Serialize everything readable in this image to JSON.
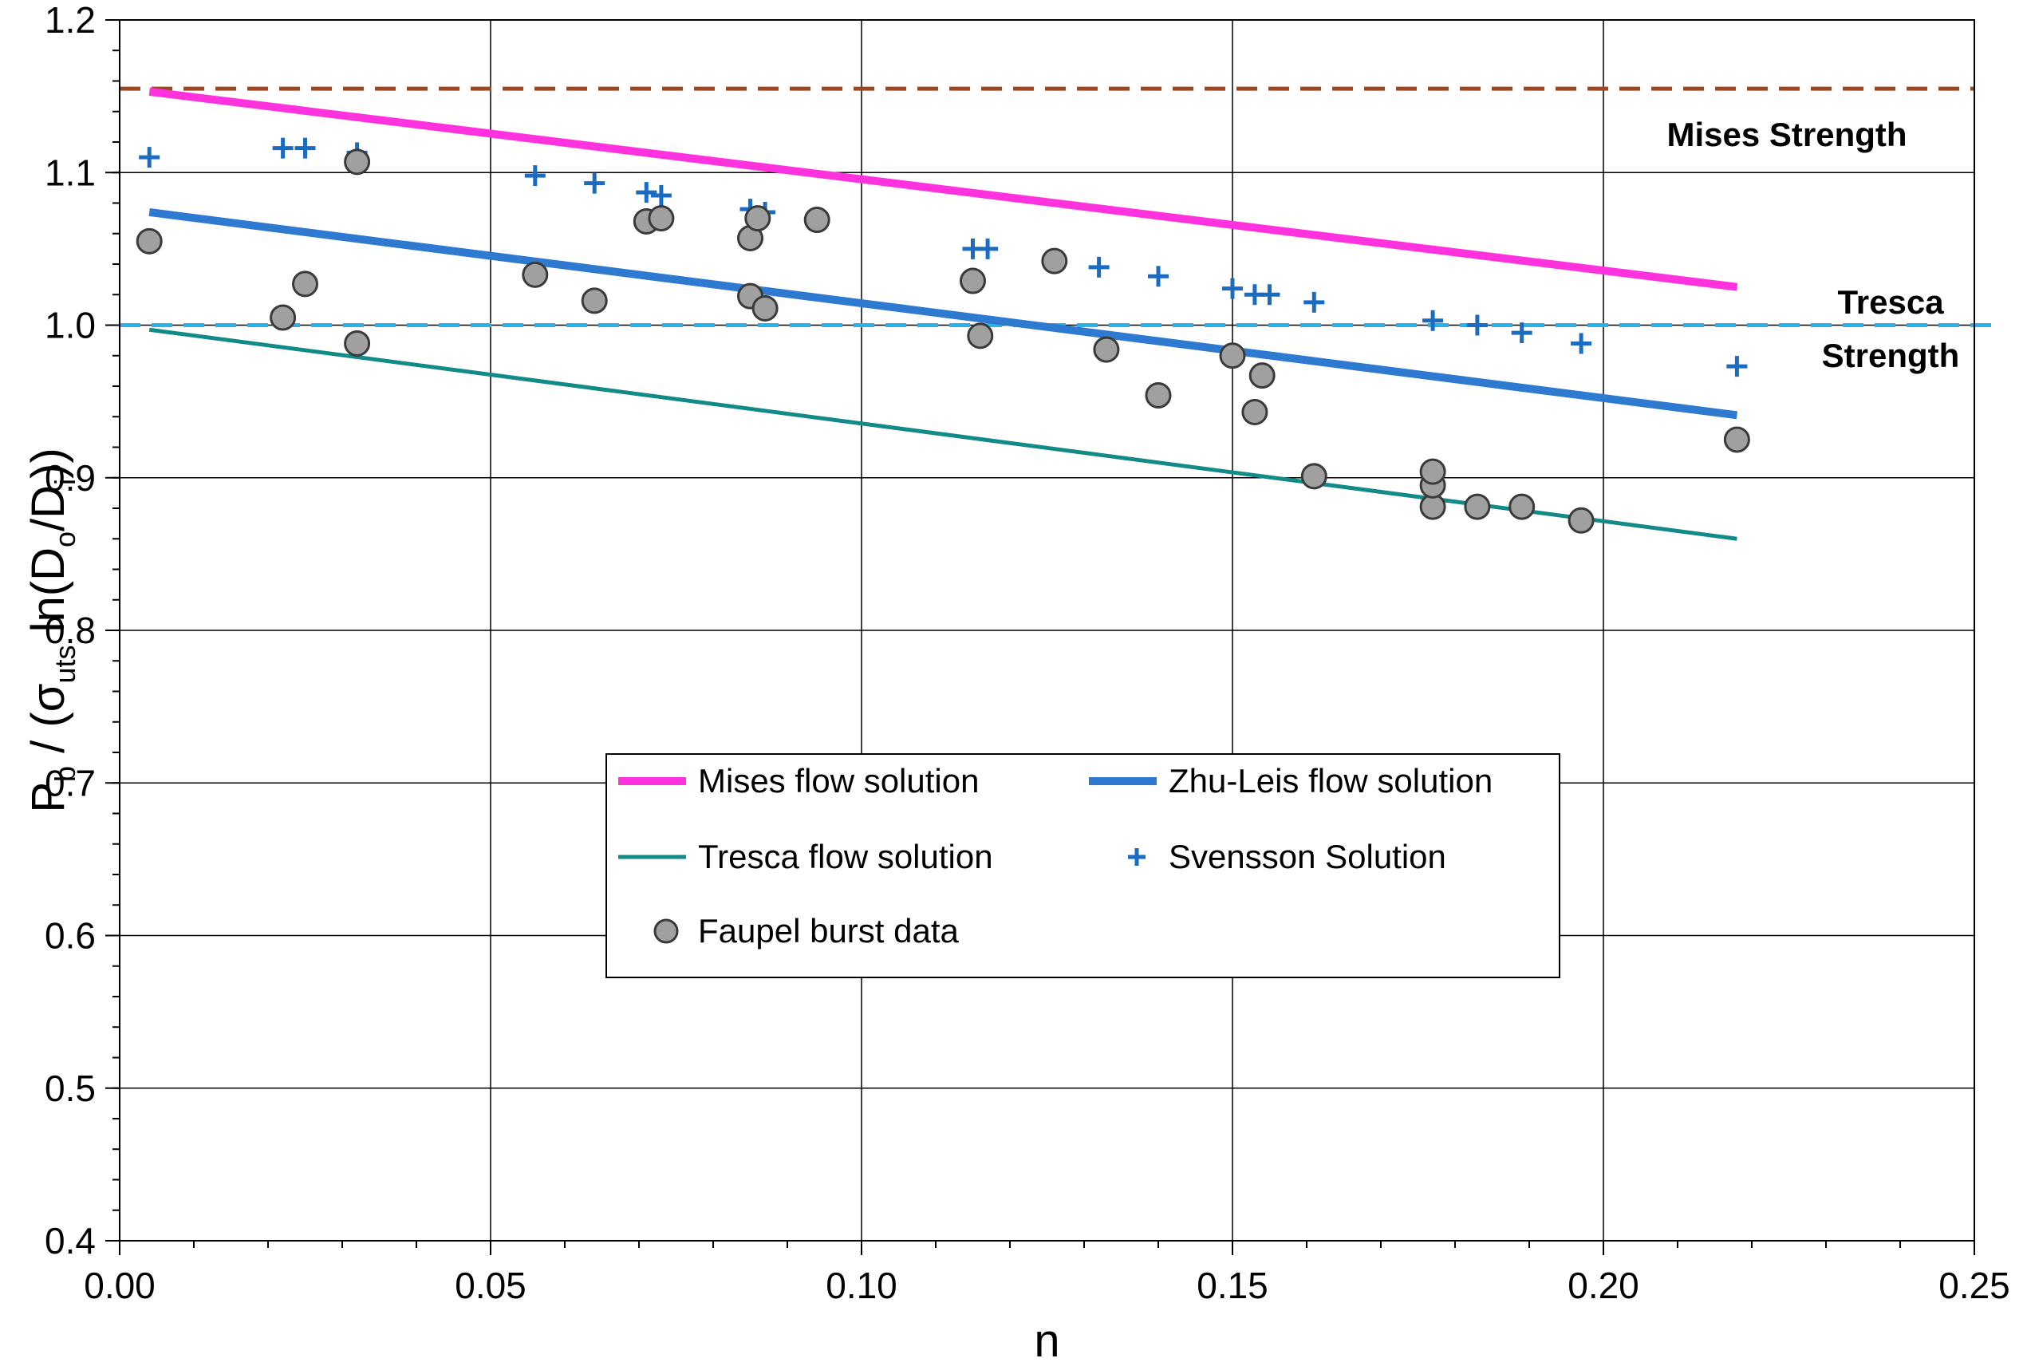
{
  "chart_data": {
    "type": "scatter",
    "title": "",
    "xlabel": "n",
    "ylabel": {
      "main": "P",
      "sub_b": "b",
      "part2": " / (σ",
      "sub_uts": "uts",
      "part3": " ln(D",
      "sub_o": "o",
      "part4": "/D",
      "sub_i": "i",
      "part5": "))"
    },
    "xlim": [
      0,
      0.25
    ],
    "ylim": [
      0.4,
      1.2
    ],
    "x_ticks": [
      {
        "value": 0.0,
        "label": "0.00"
      },
      {
        "value": 0.05,
        "label": "0.05"
      },
      {
        "value": 0.1,
        "label": "0.10"
      },
      {
        "value": 0.15,
        "label": "0.15"
      },
      {
        "value": 0.2,
        "label": "0.20"
      },
      {
        "value": 0.25,
        "label": "0.25"
      }
    ],
    "y_ticks": [
      {
        "value": 0.4,
        "label": "0.4"
      },
      {
        "value": 0.5,
        "label": "0.5"
      },
      {
        "value": 0.6,
        "label": "0.6"
      },
      {
        "value": 0.7,
        "label": "0.7"
      },
      {
        "value": 0.8,
        "label": "0.8"
      },
      {
        "value": 0.9,
        "label": "0.9"
      },
      {
        "value": 1.0,
        "label": "1.0"
      },
      {
        "value": 1.1,
        "label": "1.1"
      },
      {
        "value": 1.2,
        "label": "1.2"
      }
    ],
    "grid": true,
    "reference_lines": [
      {
        "name": "Mises Strength",
        "value": 1.155,
        "color": "#a0461e",
        "label_lines": [
          "Mises Strength"
        ]
      },
      {
        "name": "Tresca Strength",
        "value": 1.0,
        "color": "#29b3e8",
        "label_lines": [
          "Tresca",
          "Strength"
        ]
      }
    ],
    "series": [
      {
        "name": "Mises flow solution",
        "kind": "line",
        "color": "#ff33dd",
        "x": [
          0.004,
          0.218
        ],
        "y": [
          1.153,
          1.025
        ]
      },
      {
        "name": "Zhu-Leis flow solution",
        "kind": "line",
        "color": "#2f7ad1",
        "x": [
          0.004,
          0.218
        ],
        "y": [
          1.074,
          0.941
        ]
      },
      {
        "name": "Tresca  flow solution",
        "kind": "line",
        "color": "#128a88",
        "x": [
          0.004,
          0.218
        ],
        "y": [
          0.997,
          0.86
        ]
      },
      {
        "name": "Svensson Solution",
        "kind": "plus",
        "color": "#1a6cc2",
        "x": [
          0.004,
          0.022,
          0.025,
          0.032,
          0.056,
          0.064,
          0.071,
          0.073,
          0.085,
          0.087,
          0.115,
          0.117,
          0.132,
          0.14,
          0.15,
          0.153,
          0.155,
          0.161,
          0.177,
          0.183,
          0.189,
          0.197,
          0.218
        ],
        "y": [
          1.11,
          1.116,
          1.116,
          1.113,
          1.098,
          1.093,
          1.087,
          1.085,
          1.076,
          1.074,
          1.05,
          1.05,
          1.038,
          1.032,
          1.024,
          1.02,
          1.02,
          1.015,
          1.003,
          1.0,
          0.995,
          0.988,
          0.973
        ]
      },
      {
        "name": "Faupel burst data",
        "kind": "circle",
        "color": "#a0a0a0",
        "x": [
          0.004,
          0.022,
          0.025,
          0.032,
          0.032,
          0.056,
          0.064,
          0.071,
          0.073,
          0.085,
          0.085,
          0.086,
          0.087,
          0.094,
          0.115,
          0.116,
          0.126,
          0.133,
          0.14,
          0.15,
          0.153,
          0.154,
          0.161,
          0.177,
          0.177,
          0.177,
          0.183,
          0.189,
          0.197,
          0.218
        ],
        "y": [
          1.055,
          1.005,
          1.027,
          0.988,
          1.107,
          1.033,
          1.016,
          1.068,
          1.07,
          1.057,
          1.019,
          1.07,
          1.011,
          1.069,
          1.029,
          0.993,
          1.042,
          0.984,
          0.954,
          0.98,
          0.943,
          0.967,
          0.901,
          0.881,
          0.895,
          0.904,
          0.881,
          0.881,
          0.872,
          0.925
        ]
      }
    ],
    "legend": {
      "position": "center-bottom",
      "order": [
        0,
        1,
        2,
        3,
        4
      ]
    }
  }
}
